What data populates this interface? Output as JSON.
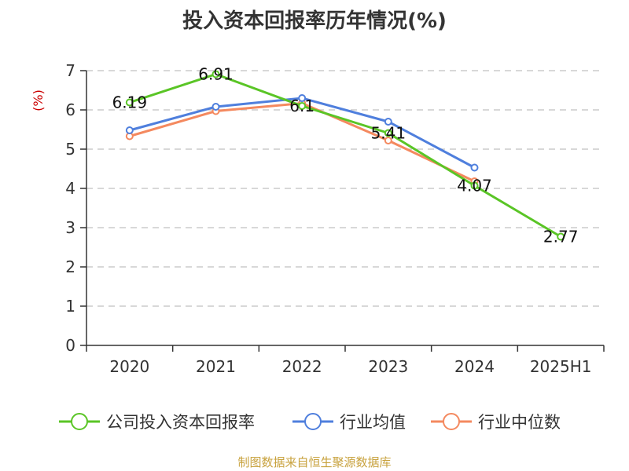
{
  "chart_data": {
    "type": "line",
    "title": "投入资本回报率历年情况(%)",
    "ylabel": "(%)",
    "xlabel": "",
    "categories": [
      "2020",
      "2021",
      "2022",
      "2023",
      "2024",
      "2025H1"
    ],
    "ylim": [
      0,
      7
    ],
    "yticks": [
      0,
      1,
      2,
      3,
      4,
      5,
      6,
      7
    ],
    "grid": true,
    "legend_position": "bottom",
    "series": [
      {
        "name": "公司投入资本回报率",
        "color": "#5ac526",
        "values": [
          6.19,
          6.91,
          6.1,
          5.41,
          4.07,
          2.77
        ],
        "labels": [
          "6.19",
          "6.91",
          "6.1",
          "5.41",
          "4.07",
          "2.77"
        ]
      },
      {
        "name": "行业均值",
        "color": "#4f7fdd",
        "values": [
          5.48,
          6.08,
          6.3,
          5.7,
          4.53,
          null
        ]
      },
      {
        "name": "行业中位数",
        "color": "#f4895f",
        "values": [
          5.33,
          5.97,
          6.17,
          5.22,
          4.18,
          null
        ]
      }
    ]
  },
  "source": "制图数据来自恒生聚源数据库",
  "colors": {
    "axis": "#333333",
    "grid": "#cccccc",
    "unit_label": "#cc0000",
    "source": "#c8a23e"
  }
}
